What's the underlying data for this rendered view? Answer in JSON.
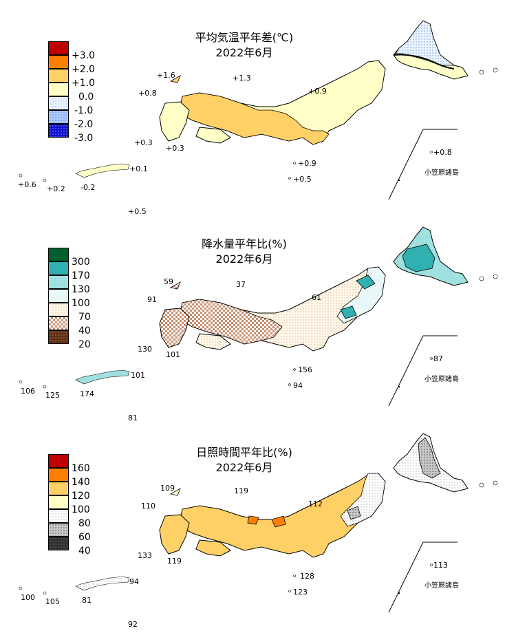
{
  "panels": [
    {
      "title_line1": "平均気温平年差(℃)",
      "title_line2": "2022年6月",
      "legend": [
        {
          "label": "+3.0",
          "color": "#c00000",
          "pattern": "solid"
        },
        {
          "label": "+2.0",
          "color": "#ff8000",
          "pattern": "solid"
        },
        {
          "label": "+1.0",
          "color": "#ffd066",
          "pattern": "solid"
        },
        {
          "label": "0.0",
          "color": "#ffffc8",
          "pattern": "solid"
        },
        {
          "label": "-1.0",
          "color": "#d8ecff",
          "pattern": "dots"
        },
        {
          "label": "-2.0",
          "color": "#8ab4ff",
          "pattern": "dots"
        },
        {
          "label": "-3.0",
          "color": "#1010d0",
          "pattern": "dots"
        }
      ],
      "values": [
        "+1.6",
        "+1.3",
        "+0.8",
        "+0.9",
        "+0.3",
        "+0.3",
        "+0.9",
        "+0.5",
        "+0.8",
        "+0.6",
        "+0.2",
        "-0.2",
        "+0.1",
        "+0.5"
      ],
      "ogasawara_label": "小笠原諸島"
    },
    {
      "title_line1": "降水量平年比(%)",
      "title_line2": "2022年6月",
      "legend": [
        {
          "label": "300",
          "color": "#006030",
          "pattern": "solid"
        },
        {
          "label": "170",
          "color": "#30b0b0",
          "pattern": "solid"
        },
        {
          "label": "130",
          "color": "#a0e0e0",
          "pattern": "solid"
        },
        {
          "label": "100",
          "color": "#e8f8f8",
          "pattern": "solid"
        },
        {
          "label": "70",
          "color": "#fff8e8",
          "pattern": "dots"
        },
        {
          "label": "40",
          "color": "#c89070",
          "pattern": "check"
        },
        {
          "label": "20",
          "color": "#603010",
          "pattern": "dots"
        }
      ],
      "values": [
        "59",
        "37",
        "91",
        "61",
        "130",
        "101",
        "156",
        "94",
        "87",
        "106",
        "125",
        "174",
        "101",
        "81"
      ],
      "ogasawara_label": "小笠原諸島"
    },
    {
      "title_line1": "日照時間平年比(%)",
      "title_line2": "2022年6月",
      "legend": [
        {
          "label": "160",
          "color": "#c00000",
          "pattern": "solid"
        },
        {
          "label": "140",
          "color": "#ff8000",
          "pattern": "solid"
        },
        {
          "label": "120",
          "color": "#ffd066",
          "pattern": "solid"
        },
        {
          "label": "100",
          "color": "#ffffc8",
          "pattern": "solid"
        },
        {
          "label": "80",
          "color": "#ffffff",
          "pattern": "dots"
        },
        {
          "label": "60",
          "color": "#c8c8c8",
          "pattern": "dots"
        },
        {
          "label": "40",
          "color": "#404040",
          "pattern": "dots"
        }
      ],
      "values": [
        "109",
        "119",
        "110",
        "112",
        "133",
        "119",
        "128",
        "123",
        "113",
        "100",
        "105",
        "81",
        "94",
        "92"
      ],
      "ogasawara_label": "小笠原諸島"
    }
  ]
}
